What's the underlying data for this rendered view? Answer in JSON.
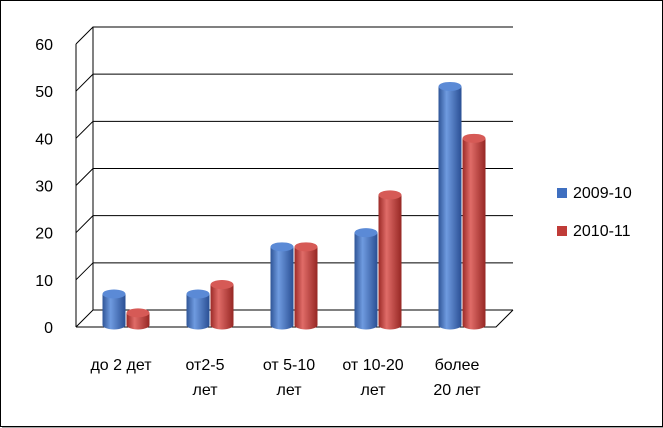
{
  "chart_data": {
    "type": "bar",
    "categories": [
      [
        "до 2 дет"
      ],
      [
        "от2-5",
        "лет"
      ],
      [
        "от 5-10",
        "лет"
      ],
      [
        "от 10-20",
        "лет"
      ],
      [
        "более",
        "20 лет"
      ]
    ],
    "series": [
      {
        "name": "2009-10",
        "values": [
          7,
          7,
          17,
          20,
          51
        ],
        "color": "#3f6fc0"
      },
      {
        "name": "2010-11",
        "values": [
          3,
          9,
          17,
          28,
          40
        ],
        "color": "#c03c38"
      }
    ],
    "ylim": [
      0,
      60
    ],
    "yticks": [
      "0",
      "10",
      "20",
      "30",
      "40",
      "50",
      "60"
    ],
    "grid": true,
    "legend_position": "right",
    "style": "3d-cylinder"
  }
}
